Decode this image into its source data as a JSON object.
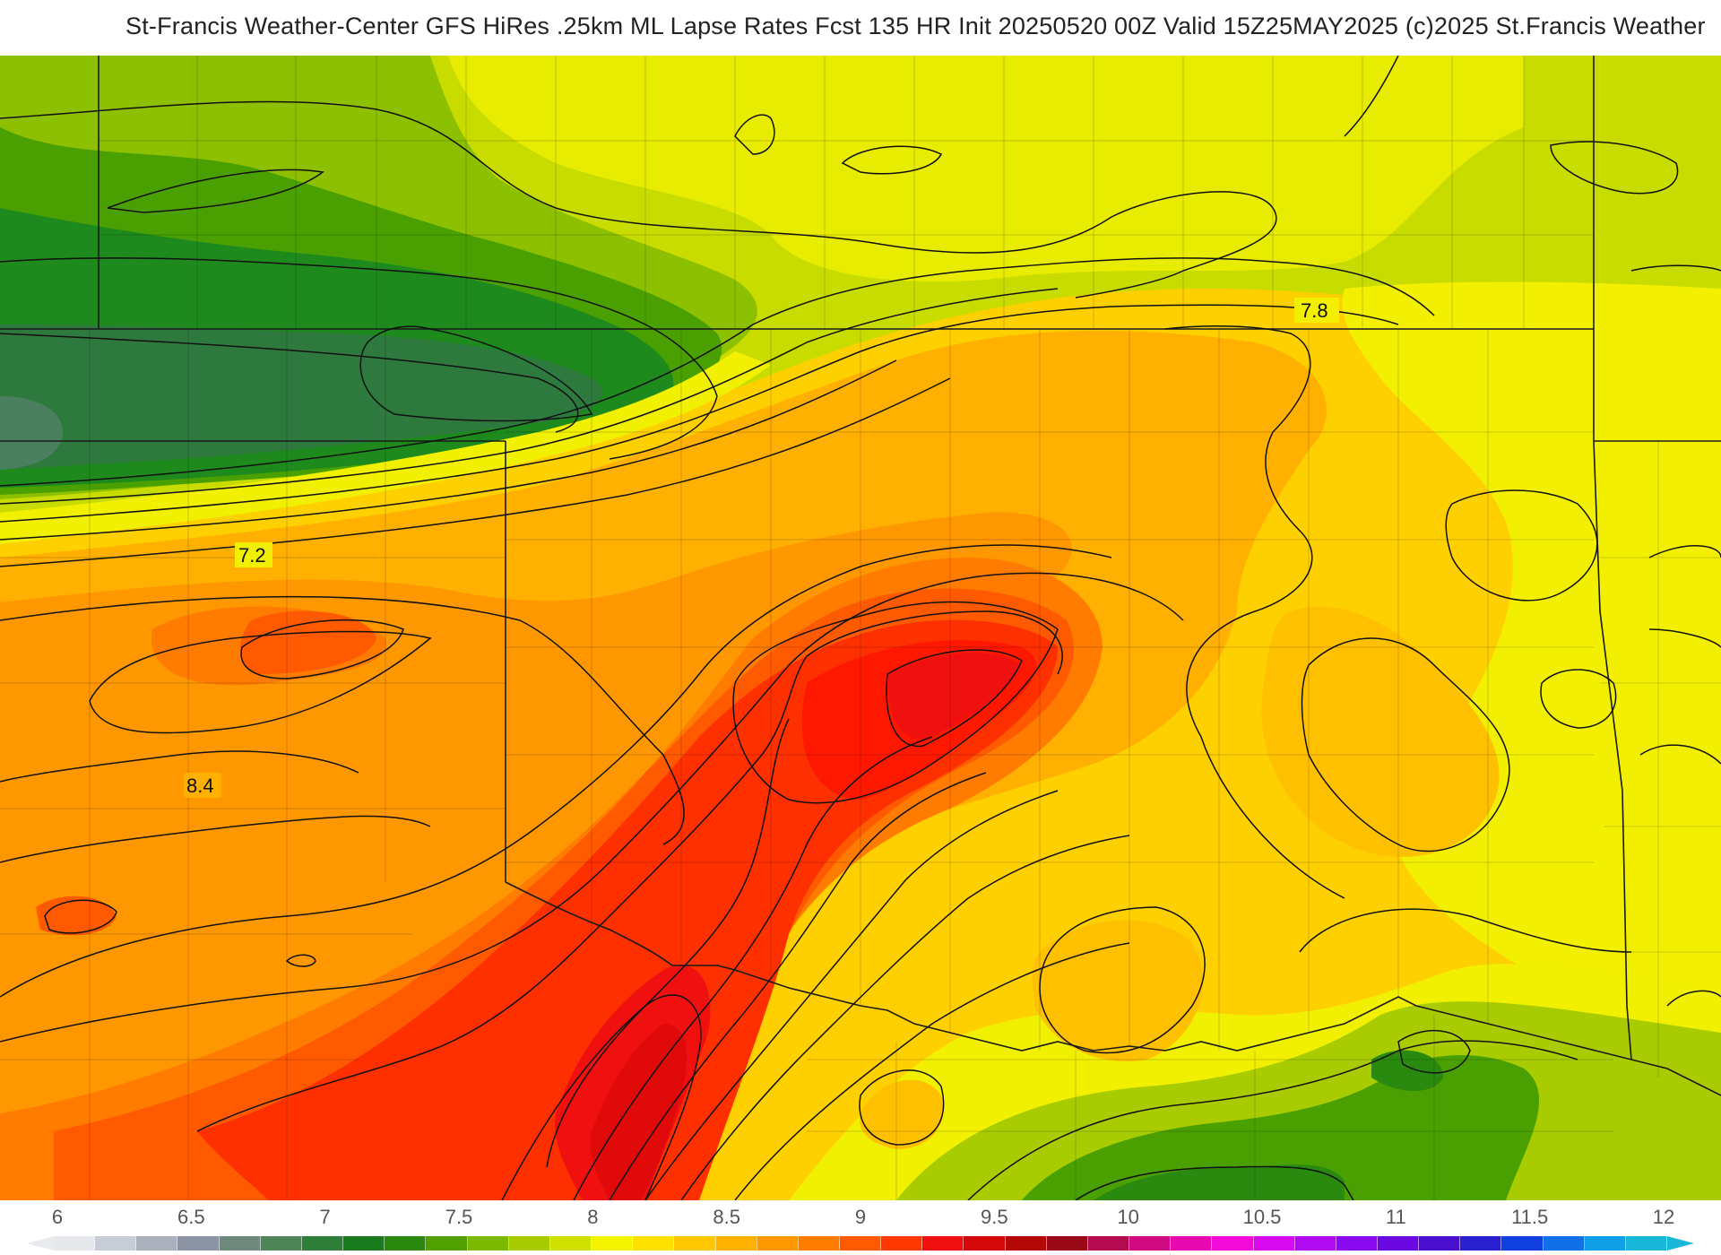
{
  "title": "St-Francis Weather-Center GFS HiRes .25km ML Lapse Rates  Fcst 135 HR Init 20250520 00Z  Valid 15Z25MAY2025    (c)2025 St.Francis Weather",
  "contour_labels": [
    "7.8",
    "7.2",
    "8.4"
  ],
  "colorbar": {
    "ticks": [
      "6",
      "6.5",
      "7",
      "7.5",
      "8",
      "8.5",
      "9",
      "9.5",
      "10",
      "10.5",
      "11",
      "11.5",
      "12"
    ],
    "colors": [
      "#e6e8ec",
      "#c8ccd4",
      "#aab0bc",
      "#8c94a4",
      "#6f8a7c",
      "#4f8458",
      "#2f7e3a",
      "#1a7a1e",
      "#2a8a10",
      "#50a000",
      "#7cb800",
      "#a8cc00",
      "#d0e000",
      "#f4f400",
      "#ffe000",
      "#ffc800",
      "#ffb000",
      "#ff9800",
      "#ff7c00",
      "#ff5a00",
      "#ff3800",
      "#f01010",
      "#d40808",
      "#b40808",
      "#9a0818",
      "#b40a50",
      "#d00a80",
      "#e60ab0",
      "#f20ad8",
      "#d80af0",
      "#b00af0",
      "#8a0af0",
      "#6a0ae0",
      "#4a10d0",
      "#2a20d0",
      "#1040e0",
      "#1070e8",
      "#10a0e8",
      "#1ab8d8"
    ]
  },
  "palette": {
    "darkgreen": "#2e7a3e",
    "green": "#1e8a1e",
    "yellowgreen": "#b8d400",
    "yellow": "#f2f000",
    "orange": "#ffa800",
    "red": "#ff2000"
  }
}
